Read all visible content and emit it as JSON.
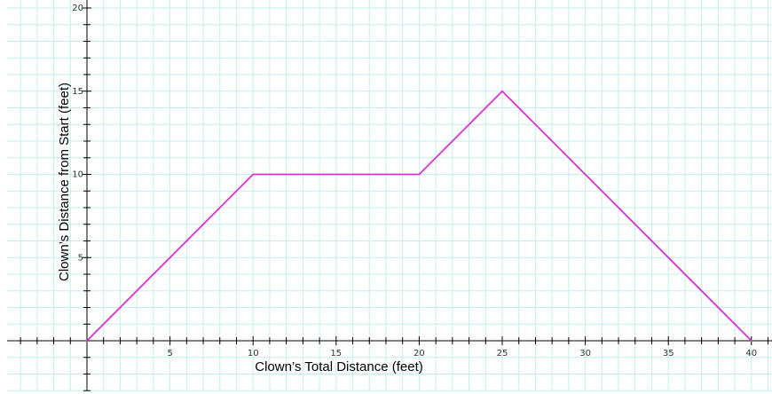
{
  "chart_data": {
    "type": "line",
    "title": "",
    "xlabel": "Clown’s Total Distance (feet)",
    "ylabel": "Clown’s Distance from Start (feet)",
    "xlim": [
      -4.8,
      41.3
    ],
    "ylim": [
      -3.0,
      20.5
    ],
    "x_ticks": [
      5,
      10,
      15,
      20,
      25,
      30,
      35,
      40
    ],
    "y_ticks": [
      5,
      10,
      15,
      20
    ],
    "x_tick_labels": [
      "5",
      "10",
      "15",
      "20",
      "25",
      "30",
      "35",
      "40"
    ],
    "y_tick_labels": [
      "5",
      "10",
      "15",
      "20"
    ],
    "grid": true,
    "grid_step": 1,
    "legend": "none",
    "series": [
      {
        "x": [
          0,
          10,
          20,
          25,
          40
        ],
        "y": [
          0,
          10,
          10,
          15,
          0
        ],
        "color": "#d633d6"
      }
    ],
    "colors": {
      "grid": "#c6eeee",
      "axis": "#000000",
      "line": "#d633d6"
    }
  }
}
